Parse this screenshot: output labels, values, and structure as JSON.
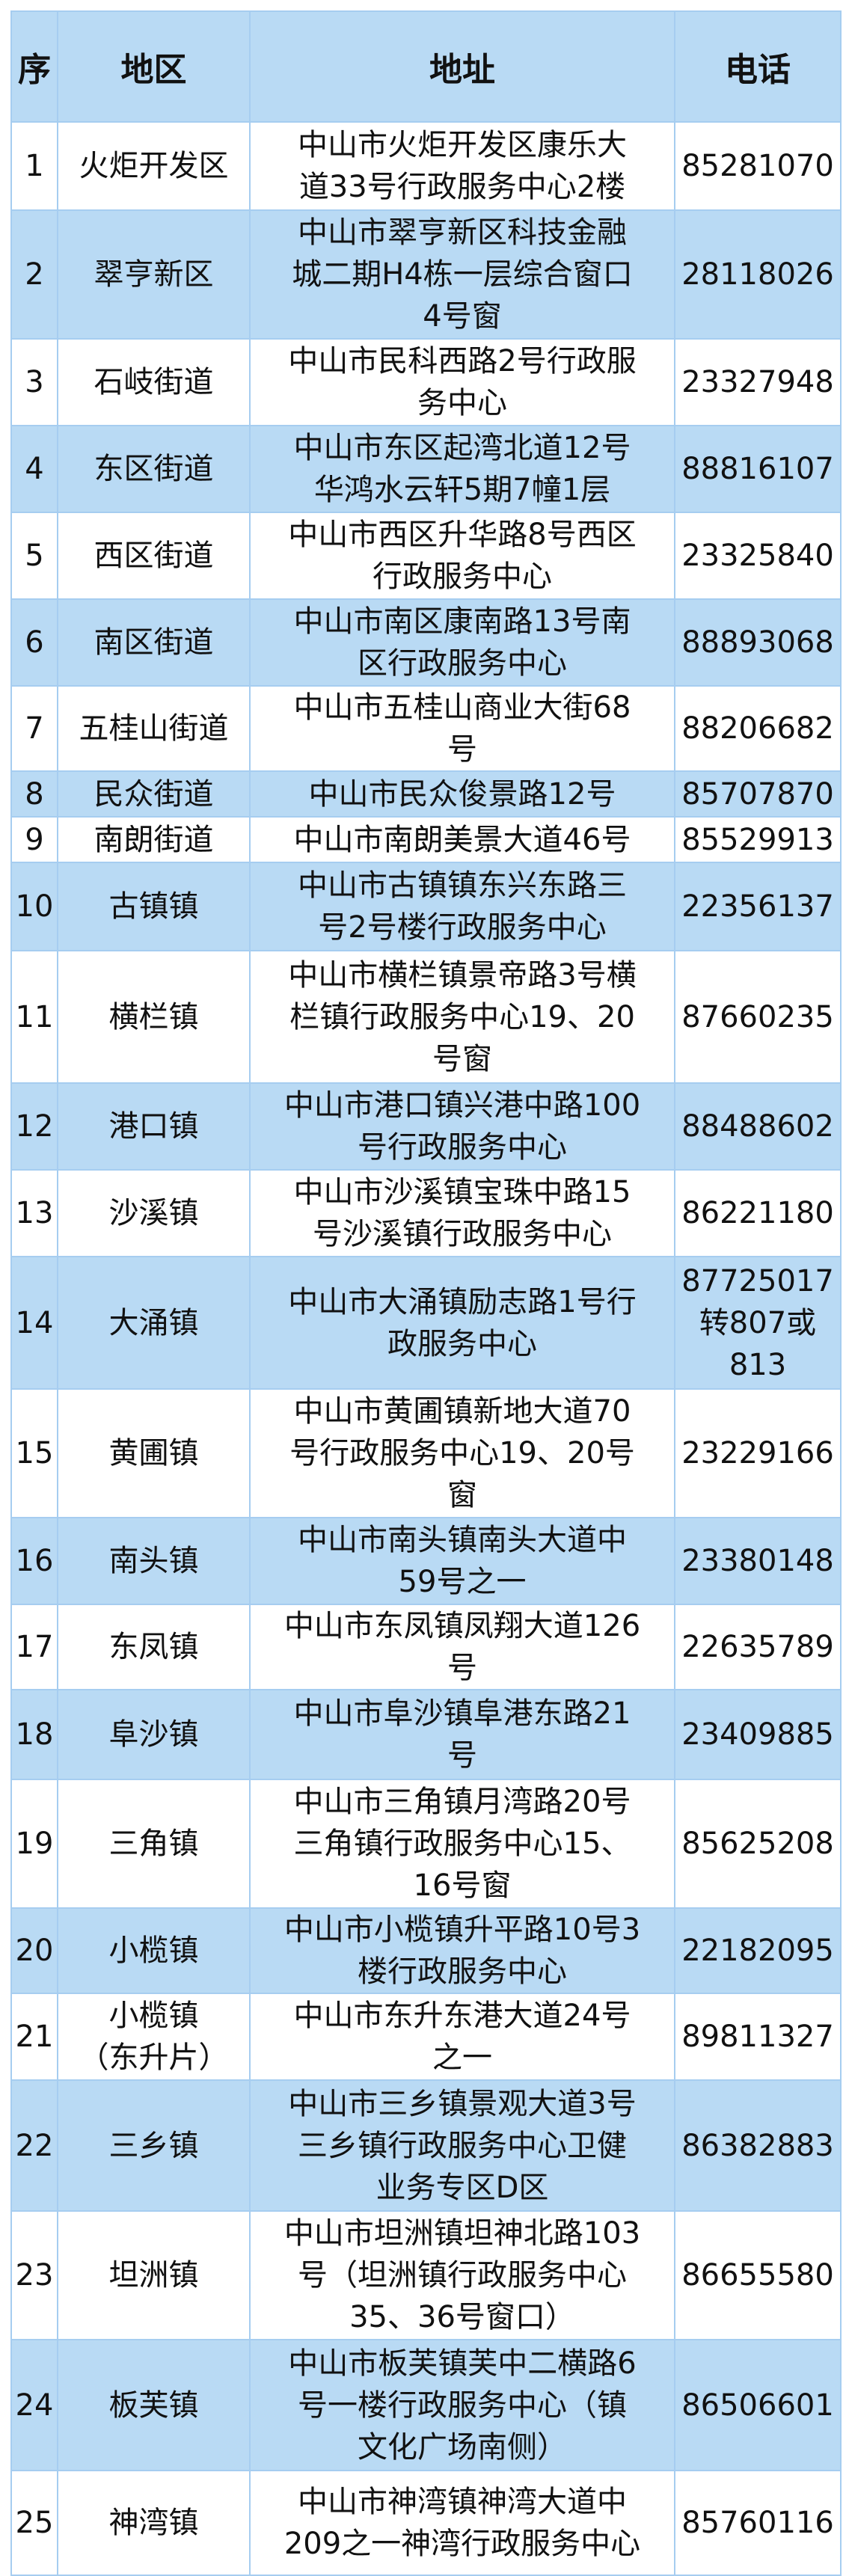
{
  "header": {
    "seq": "序",
    "region": "地区",
    "address": "地址",
    "phone": "电话"
  },
  "colors": {
    "header_bg": "#b9daf4",
    "stripe_bg": "#b9daf4",
    "border": "#a6cdf0"
  },
  "rows": [
    {
      "seq": "1",
      "region": "火炬开发区",
      "address": "中山市火炬开发区康乐大\n道33号行政服务中心2楼",
      "phone": "85281070"
    },
    {
      "seq": "2",
      "region": "翠亨新区",
      "address": "中山市翠亨新区科技金融\n城二期H4栋一层综合窗口\n4号窗",
      "phone": "28118026"
    },
    {
      "seq": "3",
      "region": "石岐街道",
      "address": "中山市民科西路2号行政服\n务中心",
      "phone": "23327948"
    },
    {
      "seq": "4",
      "region": "东区街道",
      "address": "中山市东区起湾北道12号\n华鸿水云轩5期7幢1层",
      "phone": "88816107"
    },
    {
      "seq": "5",
      "region": "西区街道",
      "address": "中山市西区升华路8号西区\n行政服务中心",
      "phone": "23325840"
    },
    {
      "seq": "6",
      "region": "南区街道",
      "address": "中山市南区康南路13号南\n区行政服务中心",
      "phone": "88893068"
    },
    {
      "seq": "7",
      "region": "五桂山街道",
      "address": "中山市五桂山商业大街68\n号",
      "phone": "88206682"
    },
    {
      "seq": "8",
      "region": "民众街道",
      "address": "中山市民众俊景路12号",
      "phone": "85707870"
    },
    {
      "seq": "9",
      "region": "南朗街道",
      "address": "中山市南朗美景大道46号",
      "phone": "85529913"
    },
    {
      "seq": "10",
      "region": "古镇镇",
      "address": "中山市古镇镇东兴东路三\n号2号楼行政服务中心",
      "phone": "22356137"
    },
    {
      "seq": "11",
      "region": "横栏镇",
      "address": "中山市横栏镇景帝路3号横\n栏镇行政服务中心19、20\n号窗",
      "phone": "87660235"
    },
    {
      "seq": "12",
      "region": "港口镇",
      "address": "中山市港口镇兴港中路100\n号行政服务中心",
      "phone": "88488602"
    },
    {
      "seq": "13",
      "region": "沙溪镇",
      "address": "中山市沙溪镇宝珠中路15\n号沙溪镇行政服务中心",
      "phone": "86221180"
    },
    {
      "seq": "14",
      "region": "大涌镇",
      "address": "中山市大涌镇励志路1号行\n政服务中心",
      "phone": "87725017\n转807或\n813"
    },
    {
      "seq": "15",
      "region": "黄圃镇",
      "address": "中山市黄圃镇新地大道70\n号行政服务中心19、20号\n窗",
      "phone": "23229166"
    },
    {
      "seq": "16",
      "region": "南头镇",
      "address": "中山市南头镇南头大道中\n59号之一",
      "phone": "23380148"
    },
    {
      "seq": "17",
      "region": "东凤镇",
      "address": "中山市东凤镇凤翔大道126\n号",
      "phone": "22635789"
    },
    {
      "seq": "18",
      "region": "阜沙镇",
      "address": "中山市阜沙镇阜港东路21\n号",
      "phone": "23409885"
    },
    {
      "seq": "19",
      "region": "三角镇",
      "address": "中山市三角镇月湾路20号\n三角镇行政服务中心15、\n16号窗",
      "phone": "85625208"
    },
    {
      "seq": "20",
      "region": "小榄镇",
      "address": "中山市小榄镇升平路10号3\n楼行政服务中心",
      "phone": "22182095"
    },
    {
      "seq": "21",
      "region": "小榄镇\n（东升片）",
      "address": "中山市东升东港大道24号\n之一",
      "phone": "89811327"
    },
    {
      "seq": "22",
      "region": "三乡镇",
      "address": "中山市三乡镇景观大道3号\n三乡镇行政服务中心卫健\n业务专区D区",
      "phone": "86382883"
    },
    {
      "seq": "23",
      "region": "坦洲镇",
      "address": "中山市坦洲镇坦神北路103\n号（坦洲镇行政服务中心\n35、36号窗口）",
      "phone": "86655580"
    },
    {
      "seq": "24",
      "region": "板芙镇",
      "address": "中山市板芙镇芙中二横路6\n号一楼行政服务中心（镇\n文化广场南侧）",
      "phone": "86506601"
    },
    {
      "seq": "25",
      "region": "神湾镇",
      "address": "中山市神湾镇神湾大道中\n209之一神湾行政服务中心",
      "phone": "85760116"
    }
  ]
}
